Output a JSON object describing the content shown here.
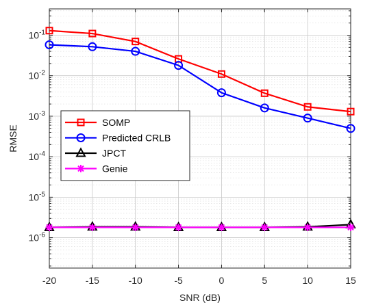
{
  "chart_data": {
    "type": "line",
    "xlabel": "SNR (dB)",
    "ylabel": "RMSE",
    "yscale": "log",
    "grid": true,
    "minor_grid": true,
    "xlim": [
      -20,
      15
    ],
    "ylim_log10": [
      -6.75,
      -0.35
    ],
    "x": [
      -20,
      -15,
      -10,
      -5,
      0,
      5,
      10,
      15
    ],
    "x_tick_labels": [
      "-20",
      "-15",
      "-10",
      "-5",
      "0",
      "5",
      "10",
      "15"
    ],
    "y_ticks": [
      {
        "base": "10",
        "exp": "-6",
        "log": -6
      },
      {
        "base": "10",
        "exp": "-5",
        "log": -5
      },
      {
        "base": "10",
        "exp": "-4",
        "log": -4
      },
      {
        "base": "10",
        "exp": "-3",
        "log": -3
      },
      {
        "base": "10",
        "exp": "-2",
        "log": -2
      },
      {
        "base": "10",
        "exp": "-1",
        "log": -1
      }
    ],
    "legend_position": "middle-left",
    "series": [
      {
        "name": "SOMP",
        "color": "#ff0000",
        "marker": "square",
        "values": [
          0.13,
          0.11,
          0.07,
          0.026,
          0.011,
          0.0037,
          0.0017,
          0.0013
        ]
      },
      {
        "name": "Predicted CRLB",
        "color": "#0000ff",
        "marker": "circle",
        "values": [
          0.058,
          0.052,
          0.04,
          0.018,
          0.0038,
          0.0016,
          0.0009,
          0.0005
        ]
      },
      {
        "name": "JPCT",
        "color": "#000000",
        "marker": "triangle",
        "values": [
          1.8e-06,
          1.85e-06,
          1.85e-06,
          1.8e-06,
          1.8e-06,
          1.8e-06,
          1.85e-06,
          2.1e-06
        ]
      },
      {
        "name": "Genie",
        "color": "#ff00ff",
        "marker": "asterisk",
        "values": [
          1.8e-06,
          1.8e-06,
          1.8e-06,
          1.8e-06,
          1.8e-06,
          1.8e-06,
          1.8e-06,
          1.8e-06
        ]
      }
    ]
  }
}
